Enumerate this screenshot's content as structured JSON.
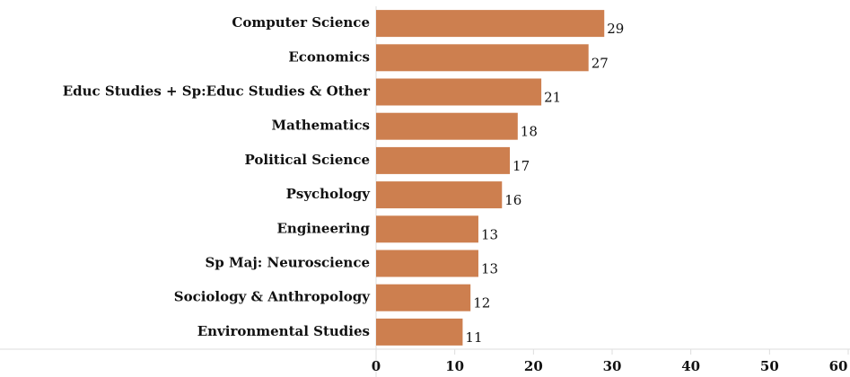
{
  "chart_data": {
    "type": "bar",
    "orientation": "horizontal",
    "categories": [
      "Computer Science",
      "Economics",
      "Educ Studies + Sp:Educ Studies & Other",
      "Mathematics",
      "Political Science",
      "Psychology",
      "Engineering",
      "Sp Maj: Neuroscience",
      "Sociology & Anthropology",
      "Environmental Studies"
    ],
    "values": [
      29,
      27,
      21,
      18,
      17,
      16,
      13,
      13,
      12,
      11
    ],
    "color": "#cd7f4f",
    "xlim": [
      0,
      60
    ],
    "xticks": [
      0,
      10,
      20,
      30,
      40,
      50,
      60
    ]
  }
}
